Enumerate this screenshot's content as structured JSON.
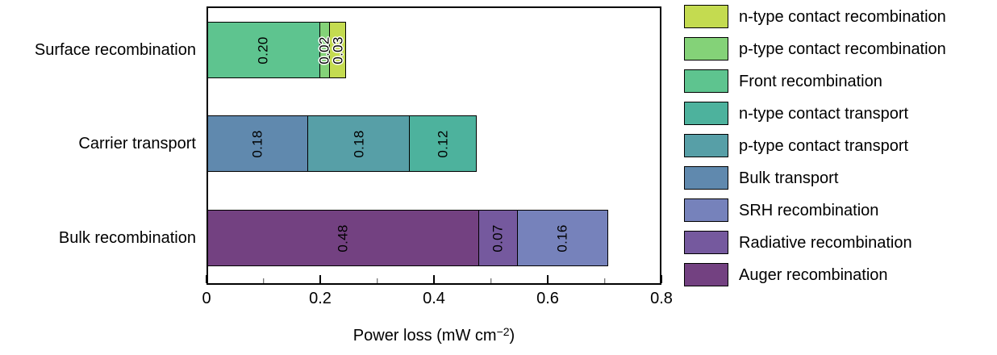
{
  "chart_data": {
    "type": "bar",
    "orientation": "horizontal",
    "stacked": true,
    "title": "",
    "xlabel_parts": {
      "prefix": "Power loss (mW cm",
      "sup": "−2",
      "suffix": ")"
    },
    "xlim": [
      0,
      0.8
    ],
    "x_major_ticks": [
      0,
      0.2,
      0.4,
      0.6,
      0.8
    ],
    "x_major_tick_labels": [
      "0",
      "0.2",
      "0.4",
      "0.6",
      "0.8"
    ],
    "x_minor_ticks": [
      0.1,
      0.3,
      0.5,
      0.7
    ],
    "grid": false,
    "legend_position": "right",
    "categories": [
      "Surface recombination",
      "Carrier transport",
      "Bulk recombination"
    ],
    "bars": [
      {
        "category": "Surface recombination",
        "segments": [
          {
            "series": "Front recombination",
            "value": 0.2,
            "text": "0.20",
            "color": "#5ec48f",
            "halo": false
          },
          {
            "series": "p-type contact recombination",
            "value": 0.02,
            "text": "0.02",
            "color": "#84d278",
            "halo": true
          },
          {
            "series": "n-type contact recombination",
            "value": 0.03,
            "text": "0.03",
            "color": "#c4db50",
            "halo": true
          }
        ]
      },
      {
        "category": "Carrier transport",
        "segments": [
          {
            "series": "Bulk transport",
            "value": 0.18,
            "text": "0.18",
            "color": "#6089ae",
            "halo": false
          },
          {
            "series": "p-type contact transport",
            "value": 0.18,
            "text": "0.18",
            "color": "#579fa7",
            "halo": false
          },
          {
            "series": "n-type contact transport",
            "value": 0.12,
            "text": "0.12",
            "color": "#4db29d",
            "halo": false
          }
        ]
      },
      {
        "category": "Bulk recombination",
        "segments": [
          {
            "series": "Auger recombination",
            "value": 0.48,
            "text": "0.48",
            "color": "#734181",
            "halo": false
          },
          {
            "series": "Radiative recombination",
            "value": 0.07,
            "text": "0.07",
            "color": "#75599e",
            "halo": false
          },
          {
            "series": "SRH recombination",
            "value": 0.16,
            "text": "0.16",
            "color": "#7682bb",
            "halo": false
          }
        ]
      }
    ],
    "legend": [
      {
        "label": "n-type contact recombination",
        "color": "#c4db50"
      },
      {
        "label": "p-type contact recombination",
        "color": "#84d278"
      },
      {
        "label": "Front recombination",
        "color": "#5ec48f"
      },
      {
        "label": "n-type contact transport",
        "color": "#4db29d"
      },
      {
        "label": "p-type contact transport",
        "color": "#579fa7"
      },
      {
        "label": "Bulk transport",
        "color": "#6089ae"
      },
      {
        "label": "SRH recombination",
        "color": "#7682bb"
      },
      {
        "label": "Radiative recombination",
        "color": "#75599e"
      },
      {
        "label": "Auger recombination",
        "color": "#734181"
      }
    ]
  }
}
